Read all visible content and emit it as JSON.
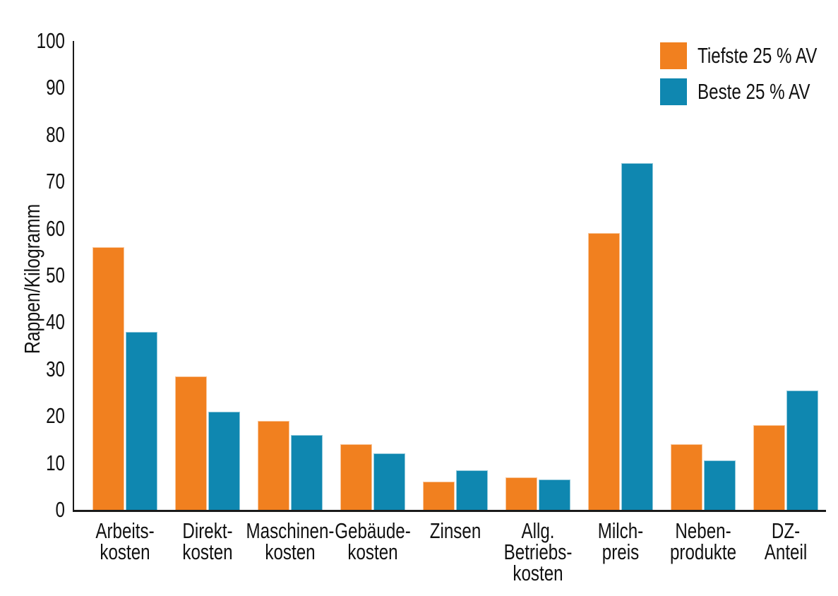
{
  "chart_data": {
    "type": "bar",
    "title": "",
    "xlabel": "",
    "ylabel": "Rappen/Kilogramm",
    "ylim": [
      0,
      100
    ],
    "ytick_step": 10,
    "yticks": [
      0,
      10,
      20,
      30,
      40,
      50,
      60,
      70,
      80,
      90,
      100
    ],
    "grid": false,
    "legend_position": "top-right",
    "background_color": "#ffffff",
    "axis_color": "#1a1a1a",
    "text_color": "#111111",
    "categories": [
      "Arbeitskosten",
      "Direktkosten",
      "Maschinenkosten",
      "Gebäudekosten",
      "Zinsen",
      "Allg. Betriebskosten",
      "Milchpreis",
      "Nebenprodukte",
      "DZ-Anteil"
    ],
    "category_labels": [
      [
        "Arbeits-",
        "kosten"
      ],
      [
        "Direkt-",
        "kosten"
      ],
      [
        "Maschinen-",
        "kosten"
      ],
      [
        "Gebäude-",
        "kosten"
      ],
      [
        "Zinsen"
      ],
      [
        "Allg.",
        "Betriebs-",
        "kosten"
      ],
      [
        "Milch-",
        "preis"
      ],
      [
        "Neben-",
        "produkte"
      ],
      [
        "DZ-",
        "Anteil"
      ]
    ],
    "series": [
      {
        "name": "Tiefste 25 % AV",
        "color": "#F1801F",
        "values": [
          56,
          28.5,
          19,
          14,
          6,
          7,
          59,
          14,
          18
        ]
      },
      {
        "name": "Beste 25 % AV",
        "color": "#0F87B0",
        "values": [
          38,
          21,
          16,
          12,
          8.5,
          6.5,
          74,
          10.5,
          25.5
        ]
      }
    ]
  }
}
